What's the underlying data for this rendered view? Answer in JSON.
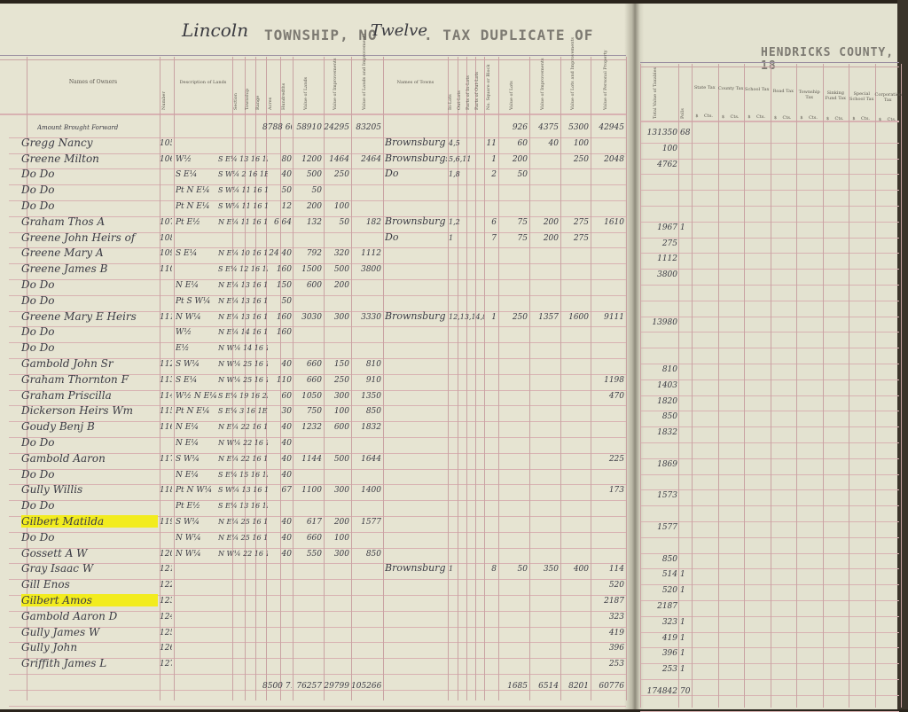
{
  "header": {
    "township_name": "Lincoln",
    "township_label": "TOWNSHIP, NO",
    "township_number": "Twelve",
    "title": ". TAX DUPLICATE OF",
    "county": "HENDRICKS COUNTY, 18"
  },
  "columns_left": {
    "names_of_owners": "Names of Owners",
    "number": "Number",
    "description": "Description of Lands",
    "section": "Section",
    "township": "Township",
    "range": "Range",
    "acres": "Acres",
    "hundredths": "Hundredths",
    "value_lands": "Value of Lands",
    "value_improvements": "Value of Improvements",
    "value_lands_improvements": "Value of Lands and Improvements",
    "names_of_towns": "Names of Towns",
    "in_lots": "In-Lots",
    "out_lots": "Out-Lots",
    "parts_in_lots": "Parts of In-Lots",
    "parts_out_lots": "Parts of Out-Lots",
    "square_block": "No. Square or Block",
    "value_lots": "Value of Lots",
    "value_lot_improvements": "Value of Improvements",
    "value_lots_improvements": "Value of Lots and Improvements",
    "value_personal": "Value of Personal Property"
  },
  "columns_right": {
    "total_taxables": "Total Value of Taxables",
    "polls": "Polls",
    "taxes": [
      "State Tax",
      "County Tax",
      "School Tax",
      "Road Tax",
      "Township Tax",
      "Sinking Fund Tax",
      "Special School Tax",
      "Corporation Tax"
    ],
    "dollars": "$",
    "cents": "Cts."
  },
  "brought_forward": {
    "label": "Amount Brought Forward",
    "acres": "8788 60",
    "v_land": "58910",
    "v_imp": "24295",
    "v_total": "83205",
    "lot_val": "926",
    "lot_imp": "4375",
    "lot_total": "5300",
    "personal": "42945",
    "taxables": "131350",
    "polls": "68"
  },
  "rows": [
    {
      "name": "Gregg Nancy",
      "number": "105",
      "town": "Brownsburg",
      "lot": "4,5",
      "block": "11",
      "lot_val": "60",
      "lot_imp": "40",
      "lot_total": "100",
      "taxables": "100"
    },
    {
      "name": "Greene Milton",
      "number": "106",
      "desc": "W½",
      "loc": "S E¼ 13 16 1E",
      "acres": "80",
      "v_land": "1200",
      "v_imp": "1464",
      "v_total": "2464",
      "town": "Brownsburgs",
      "lot": "5,6,11",
      "block": "1",
      "lot_val": "200",
      "lot_total": "250",
      "personal": "2048",
      "taxables": "4762"
    },
    {
      "name": "Do     Do",
      "desc": "S E¼",
      "loc": "S W¼ 2 16 1E",
      "acres": "40",
      "v_land": "500",
      "v_imp": "250",
      "town": "Do",
      "lot": "1,8",
      "block": "2",
      "lot_val": "50"
    },
    {
      "name": "Do     Do",
      "desc": "Pt N E¼",
      "loc": "S W¼ 11 16 1E",
      "acres": "50",
      "v_land": "50"
    },
    {
      "name": "Do     Do",
      "desc": "Pt N E¼",
      "loc": "S W¼ 11 16 1E",
      "acres": "12",
      "v_land": "200",
      "v_imp": "100"
    },
    {
      "name": "Graham Thos A",
      "number": "107",
      "desc": "Pt E½",
      "loc": "N E¼ 11 16 1E",
      "acres": "6 64",
      "v_land": "132",
      "v_imp": "50",
      "v_total": "182",
      "town": "Brownsburg",
      "lot": "1,2",
      "block": "6",
      "lot_val": "75",
      "lot_imp": "200",
      "lot_total": "275",
      "personal": "1610",
      "taxables": "1967",
      "polls": "1"
    },
    {
      "name": "Greene John Heirs of",
      "number": "108",
      "town": "Do",
      "lot": "1",
      "block": "7",
      "lot_val": "75",
      "lot_imp": "200",
      "lot_total": "275",
      "taxables": "275"
    },
    {
      "name": "Greene Mary A",
      "number": "109",
      "desc": "S E¼",
      "loc": "N E¼ 10 16 1E",
      "acres": "24 40",
      "v_land": "792",
      "v_imp": "320",
      "v_total": "1112",
      "taxables": "1112"
    },
    {
      "name": "Greene James B",
      "number": "110",
      "loc": "S E¼ 12 16 1E",
      "acres": "160",
      "v_land": "1500",
      "v_imp": "500",
      "v_total": "3800",
      "taxables": "3800"
    },
    {
      "name": "Do     Do",
      "desc": "N E¼",
      "loc": "N E¼ 13 16 1E",
      "acres": "150",
      "v_land": "600",
      "v_imp": "200"
    },
    {
      "name": "Do     Do",
      "desc": "Pt S W¼",
      "loc": "N E¼ 13 16 1E",
      "acres": "50"
    },
    {
      "name": "Greene Mary E Heirs",
      "number": "111",
      "desc": "N W¼",
      "loc": "N E¼ 13 16 1E",
      "acres": "160",
      "v_land": "3030",
      "v_imp": "300",
      "v_total": "3330",
      "town": "Brownsburg",
      "lot": "12,13,14,8",
      "block": "1",
      "lot_val": "250",
      "lot_imp": "1357",
      "lot_total": "1600",
      "personal": "9111",
      "taxables": "13980"
    },
    {
      "name": "Do     Do",
      "desc": "W½",
      "loc": "N E¼ 14 16 1E",
      "acres": "160"
    },
    {
      "name": "Do     Do",
      "desc": "E½",
      "loc": "N W¼ 14 16 1E"
    },
    {
      "name": "Gambold John Sr",
      "number": "112",
      "desc": "S W¼",
      "loc": "N W¼ 25 16 1E",
      "acres": "40",
      "v_land": "660",
      "v_imp": "150",
      "v_total": "810",
      "taxables": "810"
    },
    {
      "name": "Graham Thornton F",
      "number": "113",
      "desc": "S E¼",
      "loc": "N W¼ 25 16 1E",
      "acres": "110",
      "v_land": "660",
      "v_imp": "250",
      "v_total": "910",
      "personal": "1198",
      "taxables": "1403"
    },
    {
      "name": "Graham Priscilla",
      "number": "114",
      "desc": "W½ N E¼",
      "loc": "S E¼ 19 16 2E",
      "acres": "60",
      "v_land": "1050",
      "v_imp": "300",
      "v_total": "1350",
      "personal": "470",
      "taxables": "1820"
    },
    {
      "name": "Dickerson Heirs Wm",
      "number": "115",
      "desc": "Pt N E¼",
      "loc": "S E¼ 3 16 1E",
      "acres": "30",
      "v_land": "750",
      "v_imp": "100",
      "v_total": "850",
      "taxables": "850"
    },
    {
      "name": "Goudy Benj B",
      "number": "116",
      "desc": "N E¼",
      "loc": "N E¼ 22 16 1E",
      "acres": "40",
      "v_land": "1232",
      "v_imp": "600",
      "v_total": "1832",
      "taxables": "1832"
    },
    {
      "name": "Do     Do",
      "desc": "N E¼",
      "loc": "N W¼ 22 16 1E",
      "acres": "40"
    },
    {
      "name": "Gambold Aaron",
      "number": "117",
      "desc": "S W¼",
      "loc": "N E¼ 22 16 1E",
      "acres": "40",
      "v_land": "1144",
      "v_imp": "500",
      "v_total": "1644",
      "personal": "225",
      "taxables": "1869"
    },
    {
      "name": "Do     Do",
      "desc": "N E¼",
      "loc": "S E¼ 15 16 1E",
      "acres": "40"
    },
    {
      "name": "Gully Willis",
      "number": "118",
      "desc": "Pt N W¼",
      "loc": "S W¼ 13 16 1E",
      "acres": "67",
      "v_land": "1100",
      "v_imp": "300",
      "v_total": "1400",
      "personal": "173",
      "taxables": "1573"
    },
    {
      "name": "Do     Do",
      "desc": "Pt E½",
      "loc": "S E¼ 13 16 1E"
    },
    {
      "name": "Gilbert Matilda",
      "number": "119",
      "desc": "S W¼",
      "loc": "N E¼ 25 16 1E",
      "acres": "40",
      "v_land": "617",
      "v_imp": "200",
      "v_total": "1577",
      "taxables": "1577",
      "highlight": true
    },
    {
      "name": "Do     Do",
      "desc": "N W¼",
      "loc": "N E¼ 25 16 1E",
      "acres": "40",
      "v_land": "660",
      "v_imp": "100"
    },
    {
      "name": "Gossett A W",
      "number": "120",
      "desc": "N W¼",
      "loc": "N W¼ 22 16 1E",
      "acres": "40",
      "v_land": "550",
      "v_imp": "300",
      "v_total": "850",
      "taxables": "850"
    },
    {
      "name": "Gray Isaac W",
      "number": "121",
      "town": "Brownsburg",
      "lot": "1",
      "block": "8",
      "lot_val": "50",
      "lot_imp": "350",
      "lot_total": "400",
      "personal": "114",
      "taxables": "514",
      "polls": "1"
    },
    {
      "name": "Gill Enos",
      "number": "122",
      "personal": "520",
      "taxables": "520",
      "polls": "1"
    },
    {
      "name": "Gilbert Amos",
      "number": "123",
      "personal": "2187",
      "taxables": "2187",
      "highlight": true
    },
    {
      "name": "Gambold Aaron D",
      "number": "124",
      "personal": "323",
      "taxables": "323",
      "polls": "1"
    },
    {
      "name": "Gully James W",
      "number": "125",
      "personal": "419",
      "taxables": "419",
      "polls": "1"
    },
    {
      "name": "Gully John",
      "number": "126",
      "personal": "396",
      "taxables": "396",
      "polls": "1"
    },
    {
      "name": "Griffith James L",
      "number": "127",
      "personal": "253",
      "taxables": "253",
      "polls": "1"
    }
  ],
  "totals": {
    "acres": "8500 71",
    "v_land": "76257",
    "v_imp": "29799",
    "v_total": "105266",
    "lot_val": "1685",
    "lot_imp": "6514",
    "lot_total": "8201",
    "personal": "60776",
    "taxables": "174842",
    "polls": "70"
  },
  "colors": {
    "paper": "#e6e4d2",
    "rule": "#c9a3a3",
    "highlight": "#f2ec1e",
    "ink": "#3b3b44"
  }
}
